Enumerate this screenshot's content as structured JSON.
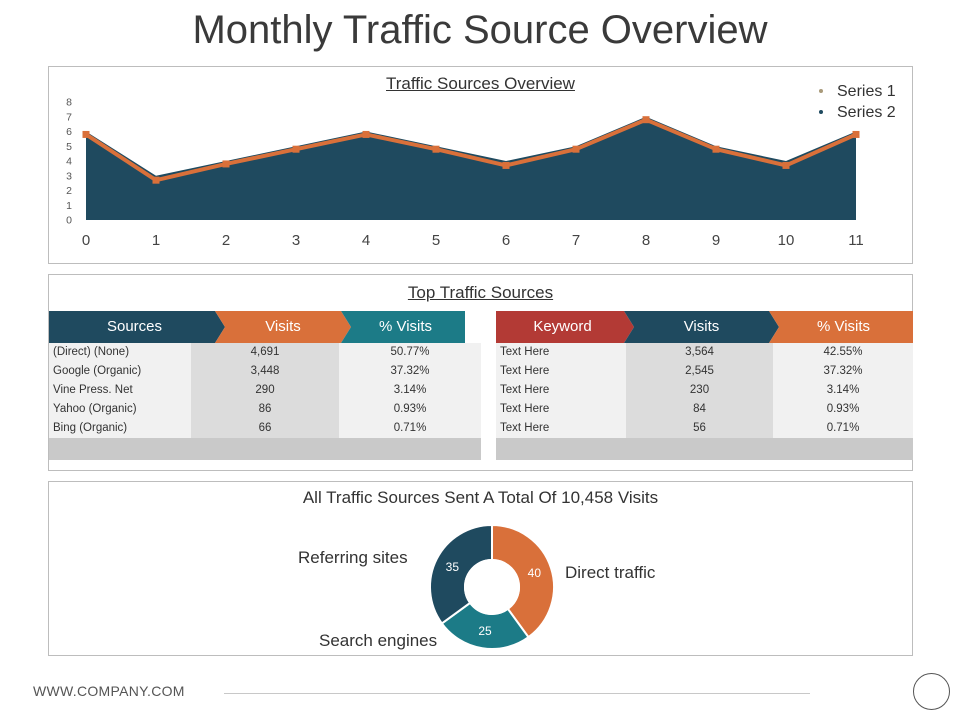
{
  "page": {
    "title": "Monthly Traffic Source Overview",
    "footer_url": "WWW.COMPANY.COM"
  },
  "colors": {
    "navy": "#1f4a5f",
    "orange": "#d9703a",
    "teal": "#1c7b87",
    "red": "#b33a35",
    "grey": "#dedede",
    "grey_dark": "#c8c8c8",
    "legend_series1": "#a99a7a"
  },
  "chart_data": [
    {
      "type": "area",
      "title": "Traffic Sources Overview",
      "x": [
        0,
        1,
        2,
        3,
        4,
        5,
        6,
        7,
        8,
        9,
        10,
        11
      ],
      "series": [
        {
          "name": "Series 1",
          "type": "area",
          "values": [
            6,
            3,
            4,
            5,
            6,
            5,
            4,
            5,
            7,
            5,
            4,
            6
          ]
        },
        {
          "name": "Series 2",
          "type": "line",
          "values": [
            5.8,
            2.7,
            3.8,
            4.8,
            5.8,
            4.8,
            3.7,
            4.8,
            6.8,
            4.8,
            3.7,
            5.8
          ]
        }
      ],
      "ylim": [
        0,
        8
      ],
      "yticks": [
        0,
        1,
        2,
        3,
        4,
        5,
        6,
        7,
        8
      ],
      "legend": "top-right"
    },
    {
      "type": "pie",
      "title": "All Traffic Sources Sent A Total Of 10,458 Visits",
      "slices": [
        {
          "label": "Direct traffic",
          "value": 40
        },
        {
          "label": "Search engines",
          "value": 25
        },
        {
          "label": "Referring sites",
          "value": 35
        }
      ]
    }
  ],
  "tables": {
    "title": "Top Traffic Sources",
    "left": {
      "headers": [
        "Sources",
        "Visits",
        "% Visits"
      ],
      "rows": [
        [
          "(Direct) (None)",
          "4,691",
          "50.77%"
        ],
        [
          "Google (Organic)",
          "3,448",
          "37.32%"
        ],
        [
          "Vine Press. Net",
          "290",
          "3.14%"
        ],
        [
          "Yahoo (Organic)",
          "86",
          "0.93%"
        ],
        [
          "Bing (Organic)",
          "66",
          "0.71%"
        ]
      ]
    },
    "right": {
      "headers": [
        "Keyword",
        "Visits",
        "% Visits"
      ],
      "rows": [
        [
          "Text Here",
          "3,564",
          "42.55%"
        ],
        [
          "Text Here",
          "2,545",
          "37.32%"
        ],
        [
          "Text Here",
          "230",
          "3.14%"
        ],
        [
          "Text Here",
          "84",
          "0.93%"
        ],
        [
          "Text Here",
          "56",
          "0.71%"
        ]
      ]
    }
  }
}
